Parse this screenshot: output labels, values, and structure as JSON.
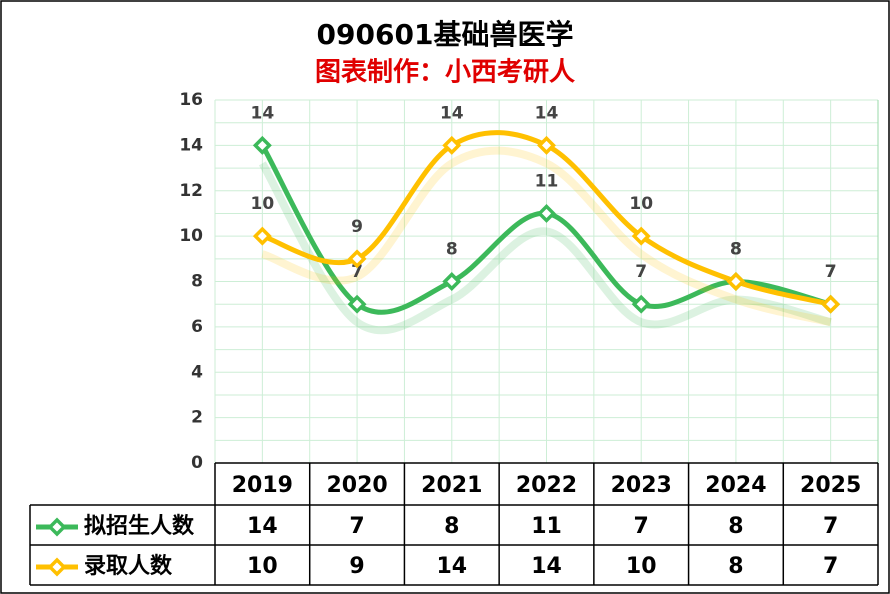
{
  "chart_data": {
    "type": "line",
    "title": "090601基础兽医学",
    "subtitle": "图表制作：小西考研人",
    "categories": [
      "2019",
      "2020",
      "2021",
      "2022",
      "2023",
      "2024",
      "2025"
    ],
    "series": [
      {
        "name": "拟招生人数",
        "color": "#3cb95a",
        "values": [
          14,
          7,
          8,
          11,
          7,
          8,
          7
        ]
      },
      {
        "name": "录取人数",
        "color": "#ffc000",
        "values": [
          10,
          9,
          14,
          14,
          10,
          8,
          7
        ]
      }
    ],
    "ylim": [
      0,
      16
    ],
    "yticks": [
      0,
      2,
      4,
      6,
      8,
      10,
      12,
      14,
      16
    ],
    "grid": true
  }
}
